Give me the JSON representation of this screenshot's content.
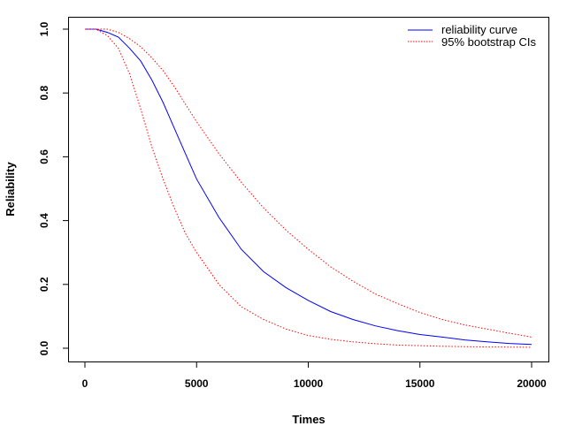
{
  "chart_data": {
    "type": "line",
    "title": "",
    "xlabel": "Times",
    "ylabel": "Reliability",
    "xlim": [
      0,
      20000
    ],
    "ylim": [
      0,
      1
    ],
    "xticks": [
      0,
      5000,
      10000,
      15000,
      20000
    ],
    "xtick_labels": [
      "0",
      "5000",
      "10000",
      "15000",
      "20000"
    ],
    "yticks": [
      0,
      0.2,
      0.4,
      0.6,
      0.8,
      1
    ],
    "ytick_labels": [
      "0.0",
      "0.2",
      "0.4",
      "0.6",
      "0.8",
      "1.0"
    ],
    "grid": false,
    "legend_position": "top-right",
    "x": [
      0,
      500,
      1000,
      1500,
      2000,
      2500,
      3000,
      3500,
      4000,
      4500,
      5000,
      6000,
      7000,
      8000,
      9000,
      10000,
      11000,
      12000,
      13000,
      14000,
      15000,
      16000,
      17000,
      18000,
      19000,
      20000
    ],
    "series": [
      {
        "name": "reliability curve",
        "color": "#0000ff",
        "style": "solid",
        "values": [
          1,
          1,
          0.99,
          0.975,
          0.94,
          0.9,
          0.84,
          0.77,
          0.69,
          0.61,
          0.53,
          0.41,
          0.31,
          0.24,
          0.19,
          0.15,
          0.115,
          0.09,
          0.07,
          0.055,
          0.043,
          0.035,
          0.026,
          0.02,
          0.015,
          0.012
        ]
      },
      {
        "name": "95% bootstrap CIs",
        "color": "#ff0000",
        "style": "dotted",
        "values": [
          1,
          1,
          1,
          0.99,
          0.97,
          0.945,
          0.91,
          0.87,
          0.82,
          0.765,
          0.71,
          0.61,
          0.52,
          0.44,
          0.37,
          0.31,
          0.255,
          0.21,
          0.17,
          0.14,
          0.112,
          0.09,
          0.073,
          0.06,
          0.047,
          0.035
        ]
      },
      {
        "name": "95% bootstrap CIs lower",
        "color": "#ff0000",
        "style": "dotted",
        "legend": false,
        "values": [
          1,
          1,
          0.98,
          0.94,
          0.86,
          0.75,
          0.63,
          0.53,
          0.44,
          0.36,
          0.3,
          0.2,
          0.13,
          0.09,
          0.06,
          0.04,
          0.028,
          0.02,
          0.014,
          0.01,
          0.008,
          0.006,
          0.005,
          0.004,
          0.0035,
          0.003
        ]
      }
    ]
  }
}
